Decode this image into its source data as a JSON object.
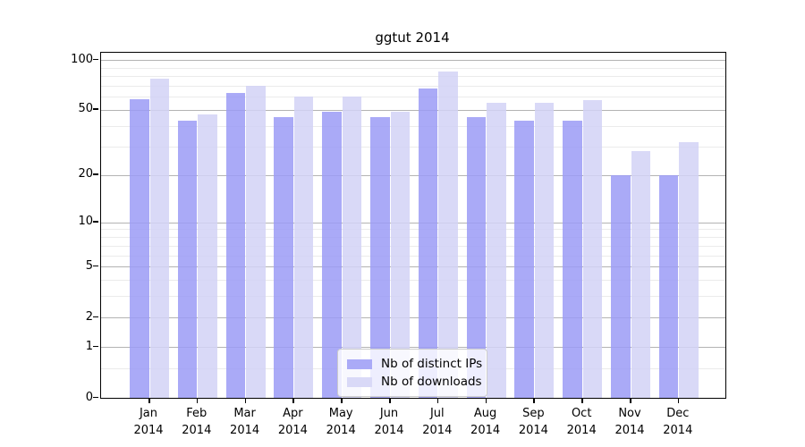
{
  "title": "ggtut 2014",
  "chart_data": {
    "type": "bar",
    "title": "ggtut 2014",
    "categories": [
      "Jan 2014",
      "Feb 2014",
      "Mar 2014",
      "Apr 2014",
      "May 2014",
      "Jun 2014",
      "Jul 2014",
      "Aug 2014",
      "Sep 2014",
      "Oct 2014",
      "Nov 2014",
      "Dec 2014"
    ],
    "months": [
      "Jan",
      "Feb",
      "Mar",
      "Apr",
      "May",
      "Jun",
      "Jul",
      "Aug",
      "Sep",
      "Oct",
      "Nov",
      "Dec"
    ],
    "year": "2014",
    "series": [
      {
        "name": "Nb of distinct IPs",
        "color": "#aaaaf7",
        "values": [
          58,
          43,
          63,
          45,
          49,
          45,
          67,
          45,
          43,
          43,
          20,
          20
        ]
      },
      {
        "name": "Nb of downloads",
        "color": "#d9d9f7",
        "values": [
          77,
          47,
          70,
          60,
          60,
          49,
          85,
          55,
          55,
          57,
          28,
          32
        ]
      }
    ],
    "xlabel": "",
    "ylabel": "",
    "yscale": "log1p",
    "ylim": [
      0,
      109
    ],
    "y_major_ticks": [
      0,
      1,
      2,
      5,
      10,
      20,
      50,
      100
    ],
    "y_minor_ticks": [
      0.5,
      3,
      4,
      6,
      7,
      8,
      9,
      30,
      40,
      60,
      70,
      80,
      90
    ],
    "grid": true,
    "legend_position": "lower center"
  },
  "legend": {
    "items": [
      {
        "label": "Nb of distinct IPs",
        "color": "#aaaaf7"
      },
      {
        "label": "Nb of downloads",
        "color": "#d9d9f7"
      }
    ]
  },
  "colors": {
    "bar_distinct_ips": "#aaaaf7",
    "bar_downloads": "#d9d9f7",
    "grid_major": "#b3b3b3",
    "grid_minor": "#ebebeb",
    "axis": "#000000",
    "background": "#ffffff"
  }
}
